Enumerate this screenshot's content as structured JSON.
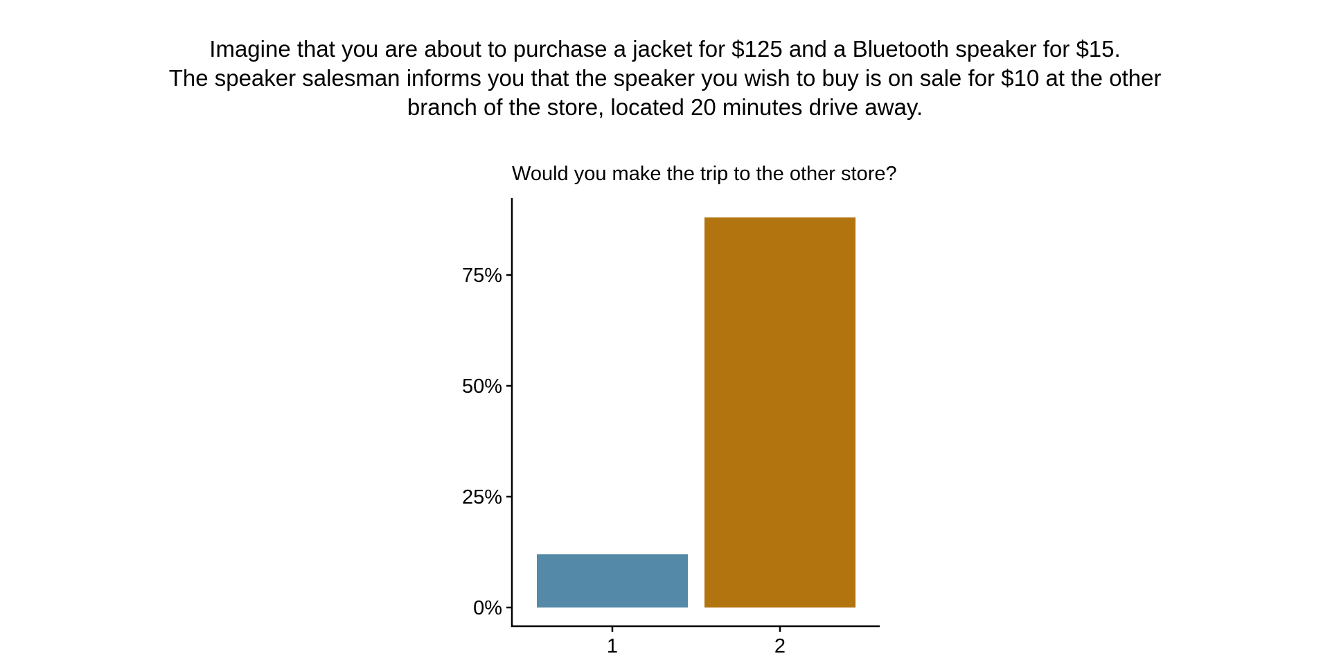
{
  "scenario": {
    "line1": "Imagine that you are about to purchase a jacket for $125 and a Bluetooth speaker for $15.",
    "line2": "The speaker salesman informs you that the speaker you wish to buy is on sale for $10 at the other",
    "line3": "branch of the store, located 20 minutes drive away."
  },
  "chart_data": {
    "type": "bar",
    "title": "Would you make the trip to the other store?",
    "categories": [
      "1",
      "2"
    ],
    "values": [
      12,
      88
    ],
    "colors": [
      "#548aa7",
      "#b1740f"
    ],
    "ylim": [
      0,
      92
    ],
    "yticks": [
      {
        "value": 0,
        "label": "0%"
      },
      {
        "value": 25,
        "label": "25%"
      },
      {
        "value": 50,
        "label": "50%"
      },
      {
        "value": 75,
        "label": "75%"
      }
    ],
    "xlabel": "",
    "ylabel": "",
    "grid": false,
    "legend": "none"
  }
}
